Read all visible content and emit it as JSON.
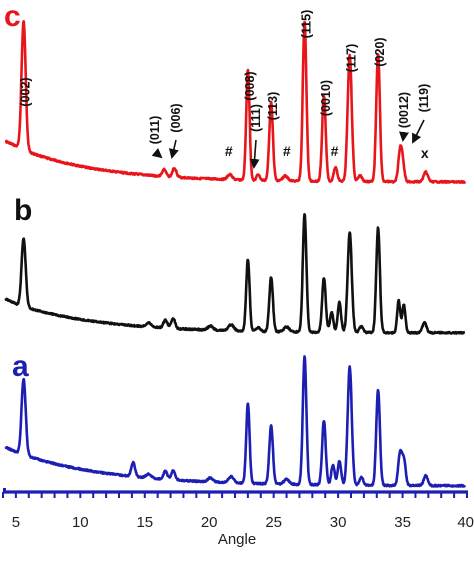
{
  "chart_data": {
    "type": "line",
    "xlabel": "Angle",
    "ylabel": "",
    "xlim": [
      4,
      40
    ],
    "xticks": [
      5,
      10,
      15,
      20,
      25,
      30,
      35,
      40
    ],
    "grid": false,
    "legend": "none",
    "panels": [
      {
        "label": "c",
        "color": "#e8151b",
        "peak_labels": [
          {
            "text": "(002)",
            "x": 5.6
          },
          {
            "text": "(011)",
            "x": 16.5
          },
          {
            "text": "(006)",
            "x": 17.3
          },
          {
            "text": "(008)",
            "x": 23.0
          },
          {
            "text": "(111)",
            "x": 23.8
          },
          {
            "text": "(113)",
            "x": 24.8
          },
          {
            "text": "(115)",
            "x": 27.4
          },
          {
            "text": "(0010)",
            "x": 28.9
          },
          {
            "text": "(117)",
            "x": 30.9
          },
          {
            "text": "(020)",
            "x": 33.1
          },
          {
            "text": "(0012)",
            "x": 34.9
          },
          {
            "text": "(119)",
            "x": 35.5
          }
        ],
        "markers": [
          {
            "text": "#",
            "x": 21.6
          },
          {
            "text": "#",
            "x": 26.1
          },
          {
            "text": "#",
            "x": 29.8
          },
          {
            "text": "x",
            "x": 36.8
          }
        ]
      },
      {
        "label": "b",
        "color": "#111111"
      },
      {
        "label": "a",
        "color": "#1d1fb3"
      }
    ]
  }
}
